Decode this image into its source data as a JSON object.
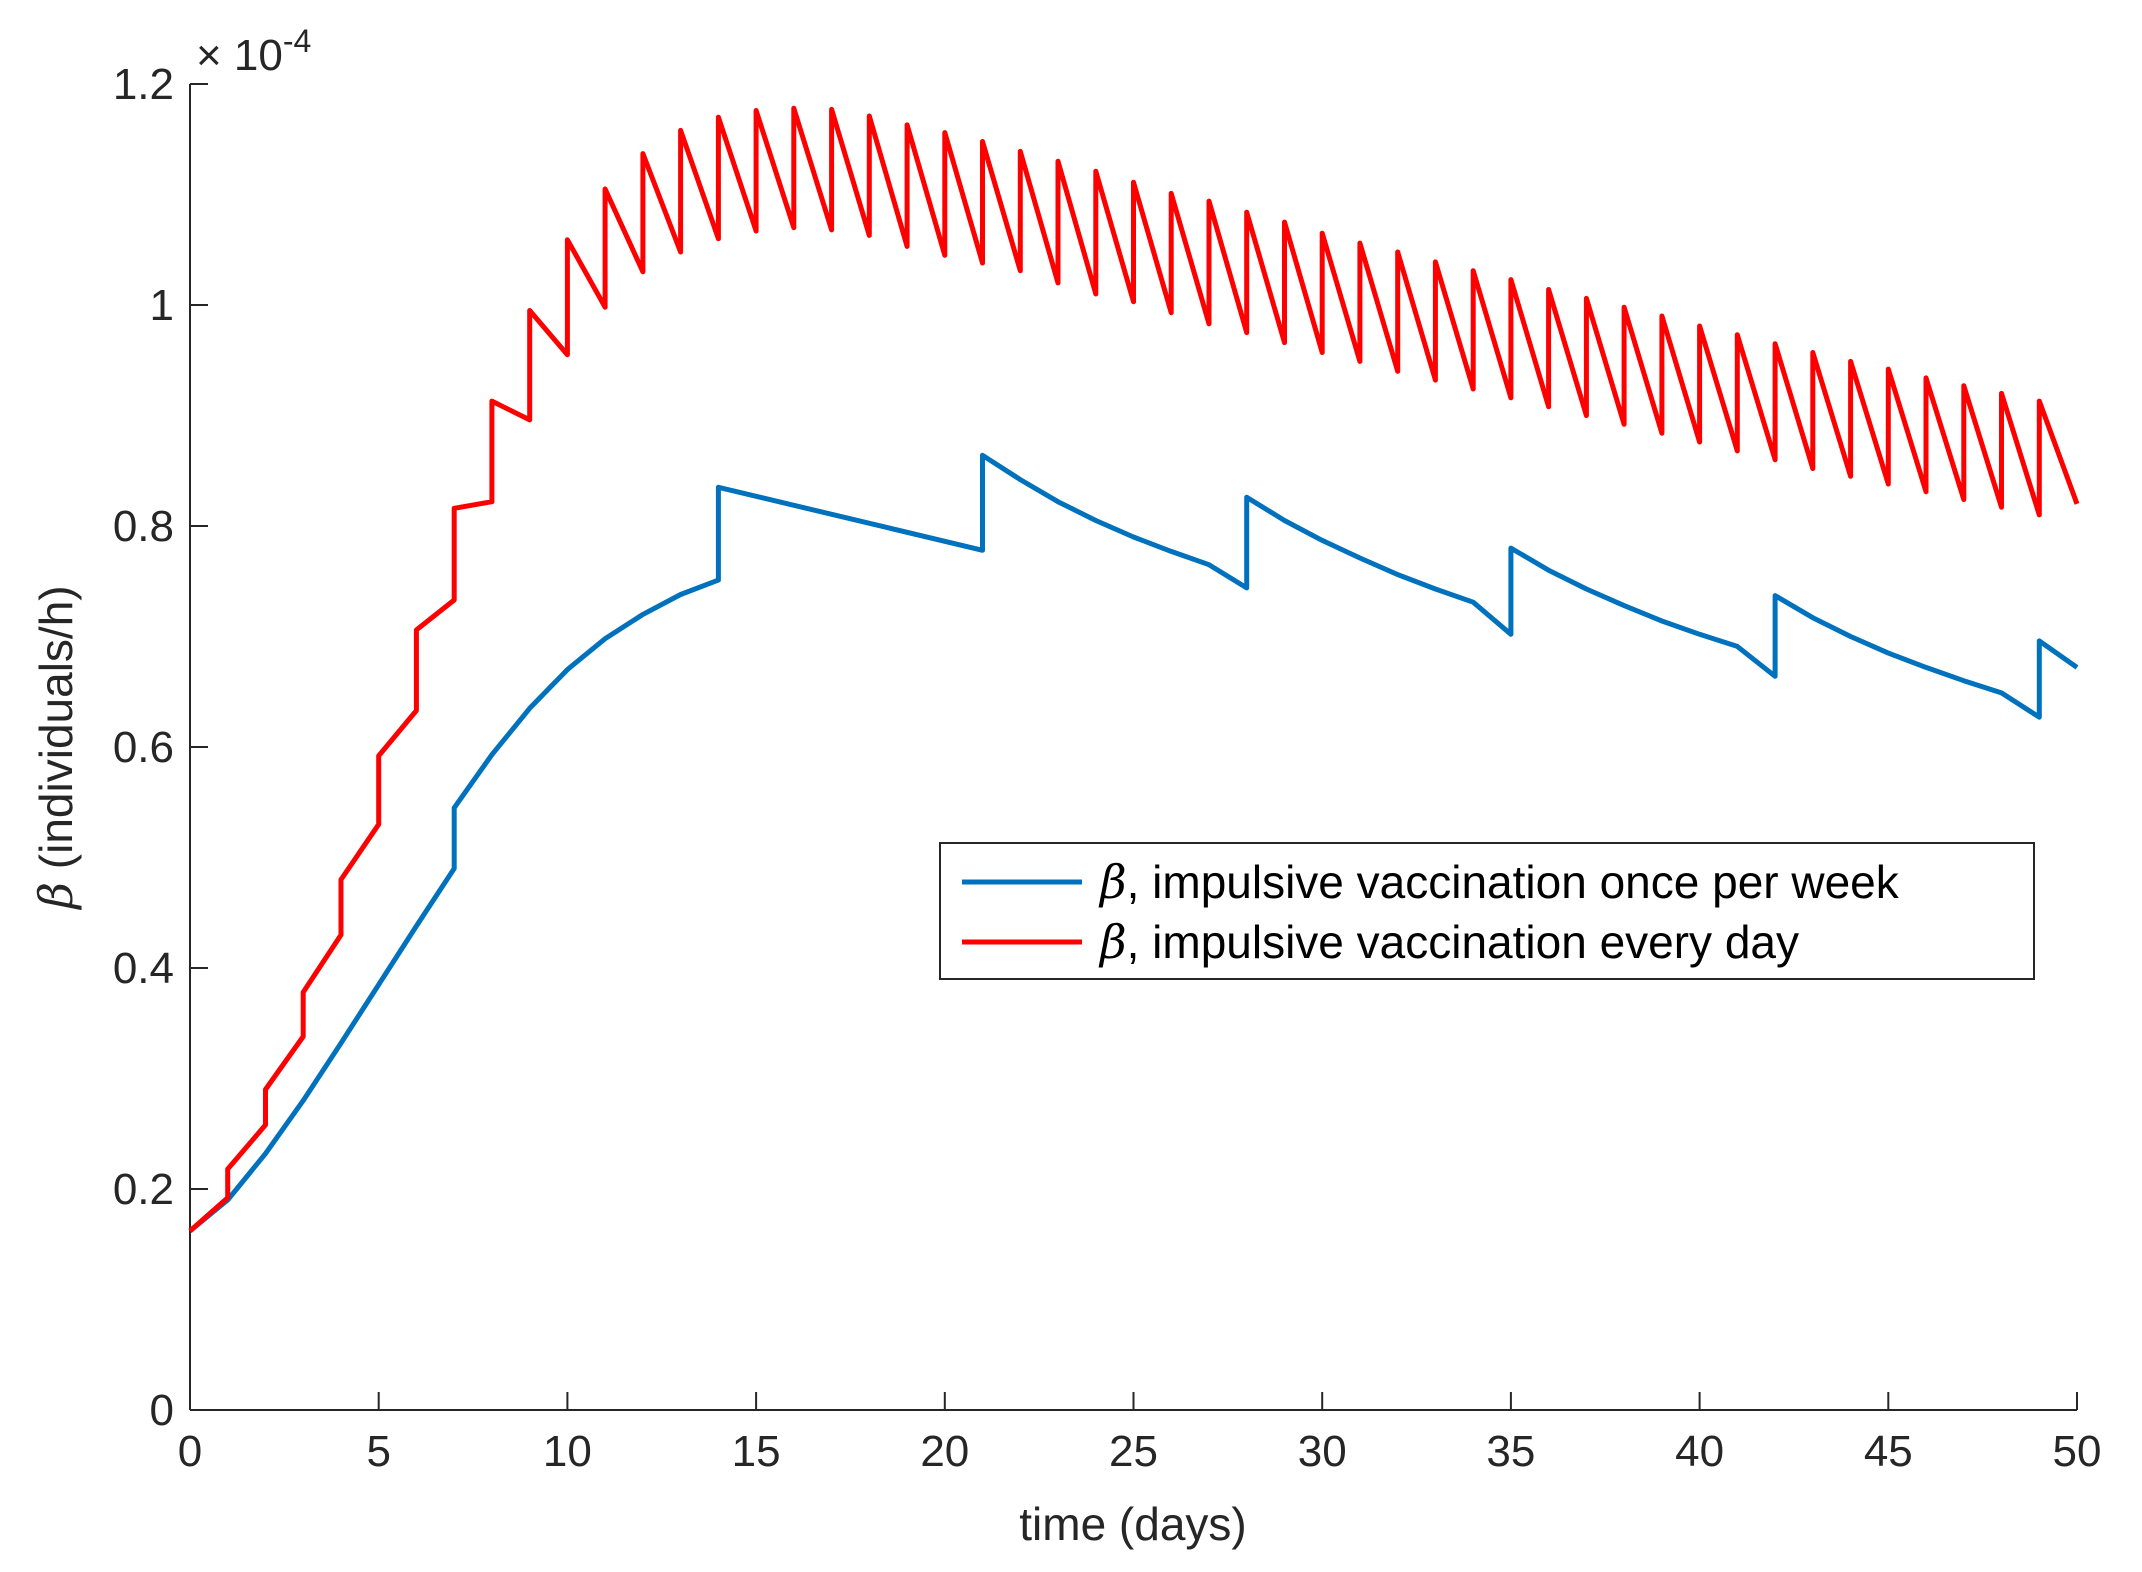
{
  "chart_data": {
    "type": "line",
    "title": "",
    "xlabel": "time (days)",
    "ylabel_symbol": "β",
    "ylabel": " (individuals/h)",
    "xlim": [
      0,
      50
    ],
    "ylim": [
      0,
      1.2
    ],
    "y_multiplier": "× 10",
    "y_exponent": "-4",
    "xticks": [
      0,
      5,
      10,
      15,
      20,
      25,
      30,
      35,
      40,
      45,
      50
    ],
    "xtick_labels": [
      "0",
      "5",
      "10",
      "15",
      "20",
      "25",
      "30",
      "35",
      "40",
      "45",
      "50"
    ],
    "yticks": [
      0,
      0.2,
      0.4,
      0.6,
      0.8,
      1.0,
      1.2
    ],
    "ytick_labels": [
      "0",
      "0.2",
      "0.4",
      "0.6",
      "0.8",
      "1",
      "1.2"
    ],
    "legend_position": "center-right",
    "series": [
      {
        "name": "β, impulsive vaccination once per week",
        "legend_symbol": "β",
        "legend_text": ", impulsive vaccination once per week",
        "color": "#0072BD",
        "x": [
          0,
          1,
          2,
          3,
          4,
          5,
          6,
          7,
          7,
          8,
          9,
          10,
          11,
          12,
          13,
          14,
          14,
          21,
          21,
          22,
          23,
          24,
          25,
          26,
          27,
          28,
          28,
          29,
          30,
          31,
          32,
          33,
          34,
          35,
          35,
          36,
          37,
          38,
          39,
          40,
          41,
          42,
          42,
          43,
          44,
          45,
          46,
          47,
          48,
          49,
          49,
          50
        ],
        "y": [
          0.162,
          0.19,
          0.232,
          0.28,
          0.332,
          0.385,
          0.438,
          0.49,
          0.545,
          0.593,
          0.635,
          0.67,
          0.698,
          0.72,
          0.738,
          0.751,
          0.835,
          0.778,
          0.864,
          0.842,
          0.822,
          0.805,
          0.79,
          0.777,
          0.765,
          0.744,
          0.826,
          0.805,
          0.787,
          0.771,
          0.756,
          0.743,
          0.731,
          0.702,
          0.78,
          0.76,
          0.743,
          0.728,
          0.714,
          0.702,
          0.691,
          0.664,
          0.737,
          0.717,
          0.7,
          0.685,
          0.672,
          0.66,
          0.649,
          0.627,
          0.696,
          0.672
        ]
      },
      {
        "name": "β, impulsive vaccination every day",
        "legend_symbol": "β",
        "legend_text": ", impulsive vaccination every day",
        "color": "#FF0000",
        "x": [
          0,
          1,
          1,
          2,
          2,
          3,
          3,
          4,
          4,
          5,
          5,
          6,
          6,
          7,
          7,
          8,
          8,
          9,
          9,
          10,
          10,
          11,
          11,
          12,
          12,
          13,
          13,
          14,
          14,
          15,
          15,
          16,
          16,
          17,
          17,
          18,
          18,
          19,
          19,
          20,
          20,
          21,
          21,
          22,
          22,
          23,
          23,
          24,
          24,
          25,
          25,
          26,
          26,
          27,
          27,
          28,
          28,
          29,
          29,
          30,
          30,
          31,
          31,
          32,
          32,
          33,
          33,
          34,
          34,
          35,
          35,
          36,
          36,
          37,
          37,
          38,
          38,
          39,
          39,
          40,
          40,
          41,
          41,
          42,
          42,
          43,
          43,
          44,
          44,
          45,
          45,
          46,
          46,
          47,
          47,
          48,
          48,
          49,
          49,
          50
        ],
        "y": [
          0.162,
          0.192,
          0.218,
          0.258,
          0.29,
          0.338,
          0.378,
          0.43,
          0.48,
          0.53,
          0.592,
          0.633,
          0.706,
          0.733,
          0.816,
          0.822,
          0.913,
          0.896,
          0.995,
          0.955,
          1.059,
          0.998,
          1.105,
          1.03,
          1.137,
          1.048,
          1.158,
          1.06,
          1.17,
          1.067,
          1.176,
          1.07,
          1.178,
          1.068,
          1.177,
          1.063,
          1.171,
          1.053,
          1.163,
          1.045,
          1.156,
          1.038,
          1.148,
          1.031,
          1.139,
          1.02,
          1.13,
          1.01,
          1.121,
          1.003,
          1.111,
          0.993,
          1.101,
          0.983,
          1.094,
          0.975,
          1.084,
          0.966,
          1.075,
          0.957,
          1.065,
          0.949,
          1.056,
          0.94,
          1.048,
          0.932,
          1.039,
          0.924,
          1.031,
          0.916,
          1.023,
          0.908,
          1.014,
          0.9,
          1.006,
          0.892,
          0.998,
          0.884,
          0.99,
          0.876,
          0.981,
          0.868,
          0.973,
          0.86,
          0.965,
          0.852,
          0.957,
          0.845,
          0.949,
          0.838,
          0.942,
          0.831,
          0.934,
          0.824,
          0.927,
          0.817,
          0.92,
          0.81,
          0.913,
          0.82
        ]
      }
    ]
  }
}
